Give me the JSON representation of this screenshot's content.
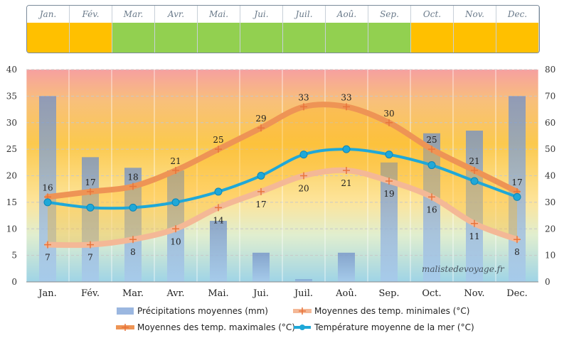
{
  "chart_data": {
    "type": "bar+line",
    "categories": [
      "Jan.",
      "Fév.",
      "Mar.",
      "Avr.",
      "Mai.",
      "Jui.",
      "Juil.",
      "Aoû.",
      "Sep.",
      "Oct.",
      "Nov.",
      "Dec."
    ],
    "left_axis": {
      "min": 0,
      "max": 40,
      "ticks": [
        0,
        5,
        10,
        15,
        20,
        25,
        30,
        35,
        40
      ]
    },
    "right_axis": {
      "min": 0,
      "max": 80,
      "ticks": [
        0,
        10,
        20,
        30,
        40,
        50,
        60,
        70,
        80
      ]
    },
    "series": [
      {
        "name": "Précipitations moyennes (mm)",
        "kind": "bar",
        "axis": "right",
        "values": [
          70,
          47,
          43,
          42,
          23,
          11,
          1,
          11,
          45,
          56,
          57,
          70
        ],
        "color": "#8aaad8"
      },
      {
        "name": "Moyennes des temp. minimales (°C)",
        "kind": "line",
        "axis": "left",
        "values": [
          7,
          7,
          8,
          10,
          14,
          17,
          20,
          21,
          19,
          16,
          11,
          8
        ],
        "labels": [
          "7",
          "7",
          "8",
          "10",
          "14",
          "17",
          "20",
          "21",
          "19",
          "16",
          "11",
          "8"
        ],
        "color": "#f4b896"
      },
      {
        "name": "Moyennes des temp. maximales (°C)",
        "kind": "line",
        "axis": "left",
        "values": [
          16,
          17,
          18,
          21,
          25,
          29,
          33,
          33,
          30,
          25,
          21,
          17
        ],
        "labels": [
          "16",
          "17",
          "18",
          "21",
          "25",
          "29",
          "33",
          "33",
          "30",
          "25",
          "21",
          "17"
        ],
        "color": "#ee9455"
      },
      {
        "name": "Température moyenne de la mer (°C)",
        "kind": "line",
        "axis": "left",
        "values": [
          15,
          14,
          14,
          15,
          17,
          20,
          24,
          25,
          24,
          22,
          19,
          16
        ],
        "color": "#1fa8d8"
      }
    ],
    "grid": true,
    "legend_position": "bottom"
  },
  "season_strip": {
    "months": [
      "Jan.",
      "Fév.",
      "Mar.",
      "Avr.",
      "Mai.",
      "Jui.",
      "Juil.",
      "Aoû.",
      "Sep.",
      "Oct.",
      "Nov.",
      "Dec."
    ],
    "colors": [
      "#ffc000",
      "#ffc000",
      "#92d050",
      "#92d050",
      "#92d050",
      "#92d050",
      "#92d050",
      "#92d050",
      "#92d050",
      "#ffc000",
      "#ffc000",
      "#ffc000"
    ]
  },
  "watermark": "malistedevoyage.fr",
  "colors": {
    "grid": "#c8c8c8",
    "axis_text": "#333333"
  }
}
